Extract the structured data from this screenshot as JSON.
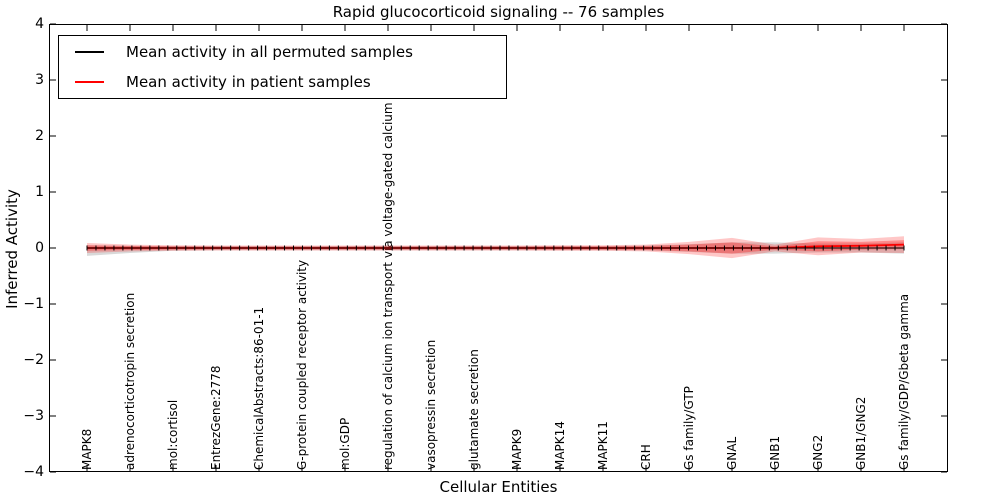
{
  "title": "Rapid glucocorticoid signaling -- 76 samples",
  "axes": {
    "xlabel": "Cellular Entities",
    "ylabel": "Inferred Activity",
    "ytick_labels": [
      "4",
      "3",
      "2",
      "1",
      "0",
      "−1",
      "−2",
      "−3",
      "−4"
    ]
  },
  "legend": {
    "items": [
      {
        "label": "Mean activity in all permuted samples",
        "color": "#000000"
      },
      {
        "label": "Mean activity in patient samples",
        "color": "#ff0000"
      }
    ]
  },
  "chart_data": {
    "type": "line",
    "title": "Rapid glucocorticoid signaling -- 76 samples",
    "xlabel": "Cellular Entities",
    "ylabel": "Inferred Activity",
    "ylim": [
      -4,
      4
    ],
    "yticks": [
      4,
      3,
      2,
      1,
      0,
      -1,
      -2,
      -3,
      -4
    ],
    "grid": false,
    "legend_position": "upper left",
    "categories": [
      "MAPK8",
      "adrenocorticotropin secretion",
      "mol:cortisol",
      "EntrezGene:2778",
      "ChemicalAbstracts:86-01-1",
      "G-protein coupled receptor activity",
      "mol:GDP",
      "regulation of calcium ion transport via voltage-gated calcium channel",
      "vasopressin secretion",
      "glutamate secretion",
      "MAPK9",
      "MAPK14",
      "MAPK11",
      "CRH",
      "Gs family/GTP",
      "GNAL",
      "GNB1",
      "GNG2",
      "GNB1/GNG2",
      "Gs family/GDP/Gbeta gamma"
    ],
    "series": [
      {
        "name": "Mean activity in all permuted samples",
        "color": "#000000",
        "marker": "+",
        "values": [
          0,
          0,
          0,
          0,
          0,
          0,
          0,
          0,
          0,
          0,
          0,
          0,
          0,
          0,
          0,
          0,
          0,
          0,
          0,
          0
        ],
        "band_upper": [
          0.05,
          0.04,
          0.035,
          0.035,
          0.035,
          0.035,
          0.035,
          0.035,
          0.035,
          0.035,
          0.035,
          0.035,
          0.035,
          0.045,
          0.07,
          0.1,
          0.1,
          0.08,
          0.08,
          0.1
        ],
        "band_lower": [
          -0.14,
          -0.09,
          -0.05,
          -0.04,
          -0.04,
          -0.04,
          -0.04,
          -0.04,
          -0.04,
          -0.04,
          -0.04,
          -0.04,
          -0.04,
          -0.045,
          -0.07,
          -0.1,
          -0.1,
          -0.08,
          -0.08,
          -0.1
        ],
        "band_color": "rgba(130,130,130,0.30)"
      },
      {
        "name": "Mean activity in patient samples",
        "color": "#ff0000",
        "values": [
          0,
          0,
          0,
          0,
          0,
          0,
          0,
          0,
          0,
          0,
          0,
          0,
          0,
          0,
          0,
          0,
          0,
          0.03,
          0.04,
          0.06
        ],
        "band_outer": [
          0.09,
          0.06,
          0.05,
          0.045,
          0.045,
          0.045,
          0.045,
          0.045,
          0.045,
          0.045,
          0.045,
          0.05,
          0.05,
          0.06,
          0.11,
          0.18,
          0.06,
          0.16,
          0.12,
          0.15
        ],
        "band_inner": [
          0.05,
          0.035,
          0.03,
          0.025,
          0.025,
          0.025,
          0.025,
          0.025,
          0.025,
          0.025,
          0.025,
          0.03,
          0.03,
          0.035,
          0.06,
          0.1,
          0.03,
          0.09,
          0.07,
          0.08
        ],
        "band_outer_color": "rgba(255,0,0,0.22)",
        "band_inner_color": "rgba(255,0,0,0.30)"
      }
    ]
  }
}
